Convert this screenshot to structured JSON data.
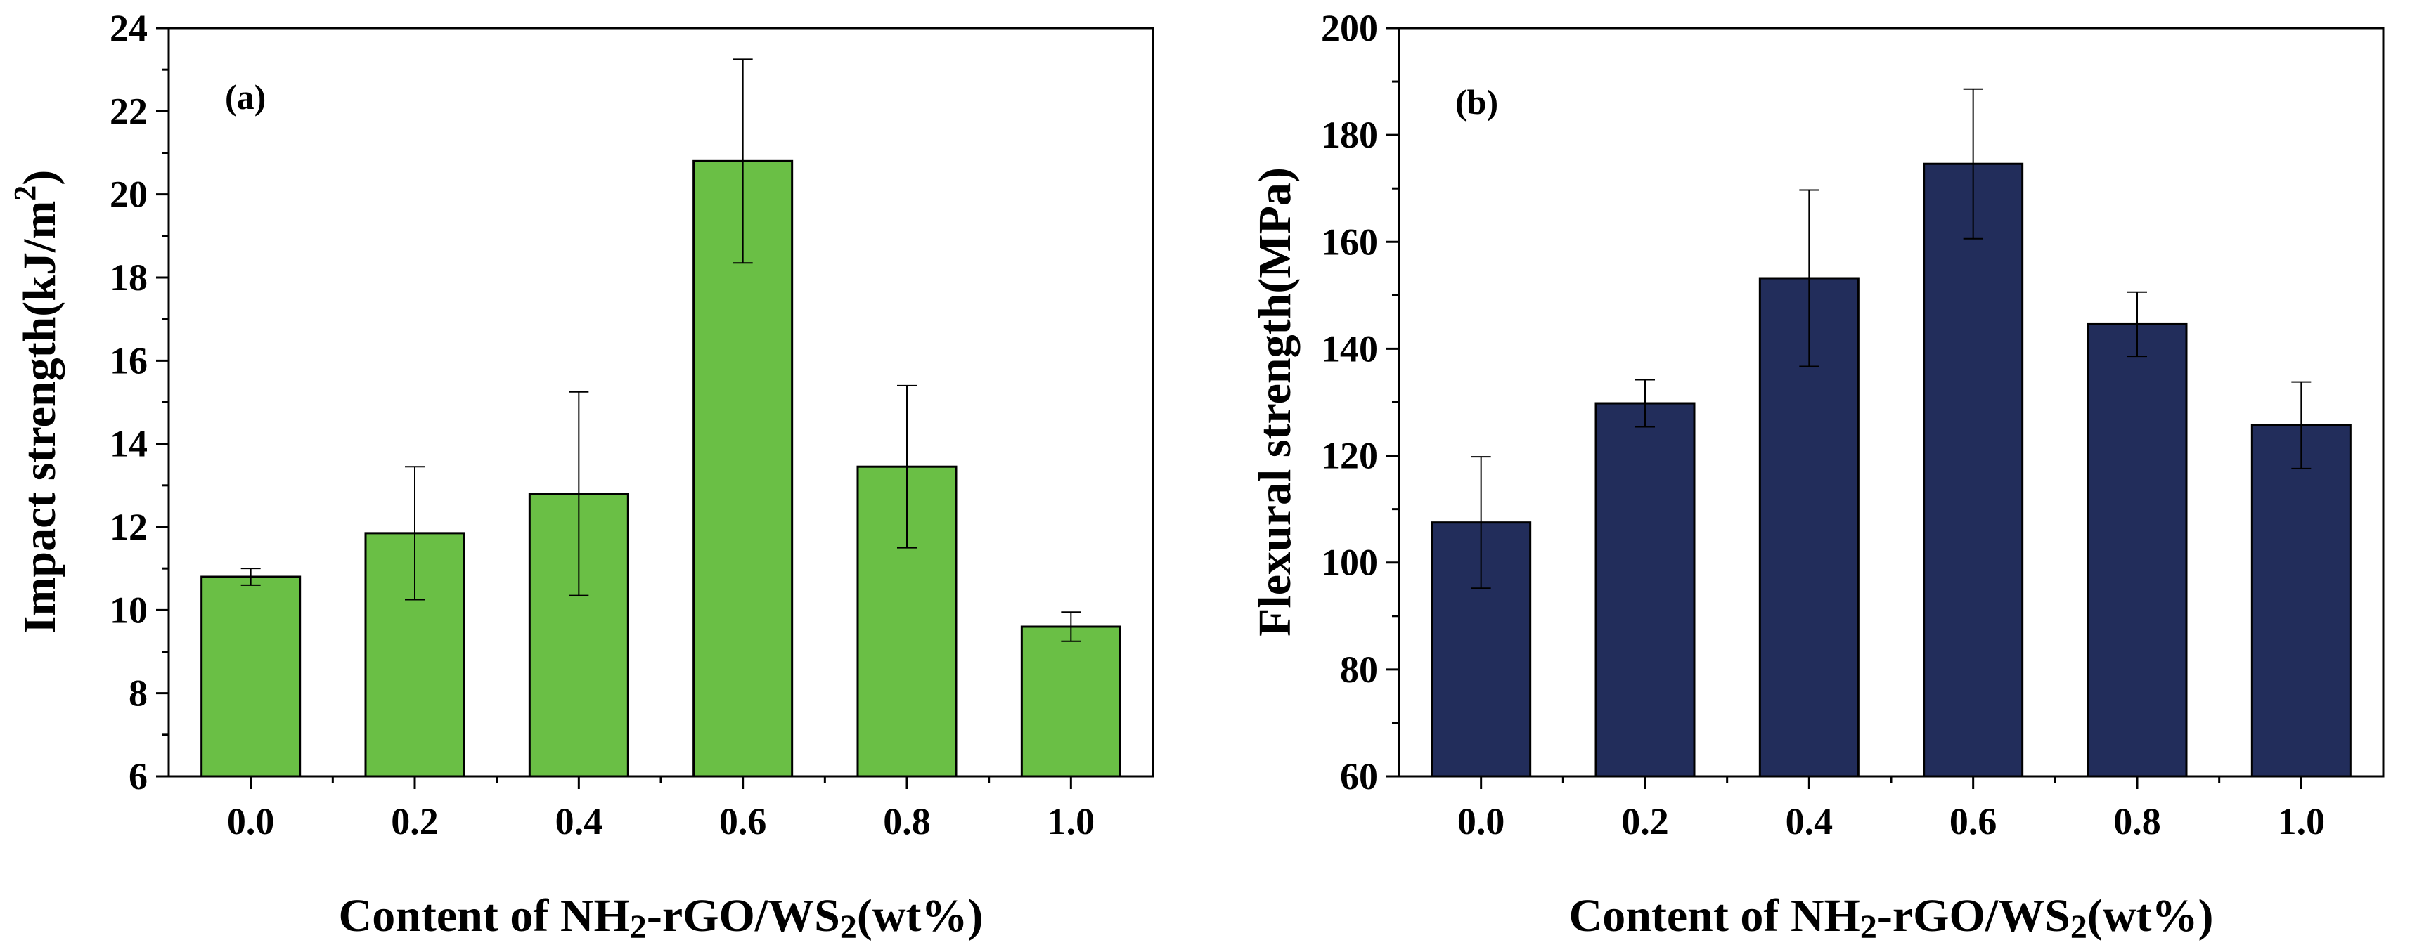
{
  "chart_data": [
    {
      "type": "bar",
      "panel_label": "(a)",
      "title": "",
      "categories": [
        "0.0",
        "0.2",
        "0.4",
        "0.6",
        "0.8",
        "1.0"
      ],
      "values": [
        10.8,
        11.85,
        12.8,
        20.8,
        13.45,
        9.6
      ],
      "errors": [
        0.2,
        1.6,
        2.45,
        2.45,
        1.95,
        0.35
      ],
      "bar_color": "#6abf45",
      "ylim": [
        6,
        24
      ],
      "yticks": [
        "6",
        "8",
        "10",
        "12",
        "14",
        "16",
        "18",
        "20",
        "22",
        "24"
      ],
      "ylabel": {
        "main": "Impact strength(kJ/m",
        "sup": "2",
        "end": ")"
      },
      "xlabel": {
        "part1": "Content of NH",
        "sub1": "2",
        "part2": "-rGO/WS",
        "sub2": "2",
        "part3": "(wt%)"
      }
    },
    {
      "type": "bar",
      "panel_label": "(b)",
      "title": "",
      "categories": [
        "0.0",
        "0.2",
        "0.4",
        "0.6",
        "0.8",
        "1.0"
      ],
      "values": [
        107.5,
        129.8,
        153.2,
        174.6,
        144.6,
        125.7
      ],
      "errors": [
        12.3,
        4.4,
        16.5,
        14.0,
        6.0,
        8.1
      ],
      "bar_color": "#222d5b",
      "ylim": [
        60,
        200
      ],
      "yticks": [
        "60",
        "80",
        "100",
        "120",
        "140",
        "160",
        "180",
        "200"
      ],
      "ylabel": {
        "main": "Flexural strength(MPa)"
      },
      "xlabel": {
        "part1": "Content of NH",
        "sub1": "2",
        "part2": "-rGO/WS",
        "sub2": "2",
        "part3": "(wt%)"
      }
    }
  ]
}
